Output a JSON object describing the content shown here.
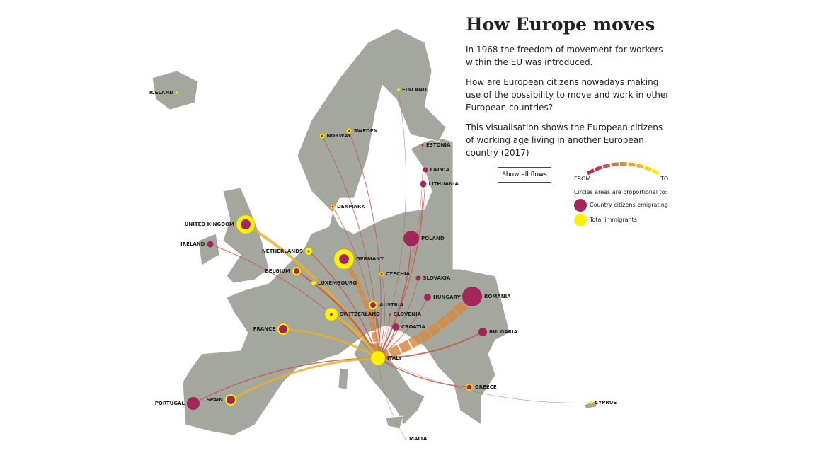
{
  "title": "How Europe moves",
  "paragraphs": [
    "In 1968 the freedom of movement for workers within the EU was introduced.",
    "How are European citizens nowadays making use of the possibility to move and work in other European countries?",
    "This visualisation shows the European citizens of working age living in another European country (2017)"
  ],
  "button": "Show all flows",
  "legend": {
    "from": "FROM",
    "to": "TO",
    "note": "Circles areas are proportional to:",
    "items": [
      "Country citizens emigrating",
      "Total immigrants"
    ]
  },
  "countries": [
    "ICELAND",
    "FINLAND",
    "NORWAY",
    "SWEDEN",
    "ESTONIA",
    "LATVIA",
    "LITHUANIA",
    "DENMARK",
    "UNITED KINGDOM",
    "IRELAND",
    "NETHERLANDS",
    "GERMANY",
    "BELGIUM",
    "LUXEMBOURG",
    "CZECHIA",
    "POLAND",
    "SLOVAKIA",
    "HUNGARY",
    "ROMANIA",
    "AUSTRIA",
    "SWITZERLAND",
    "SLOVENIA",
    "CROATIA",
    "FRANCE",
    "BULGARIA",
    "ITALY",
    "GREECE",
    "PORTUGAL",
    "SPAIN",
    "MALTA",
    "CYPRUS"
  ]
}
